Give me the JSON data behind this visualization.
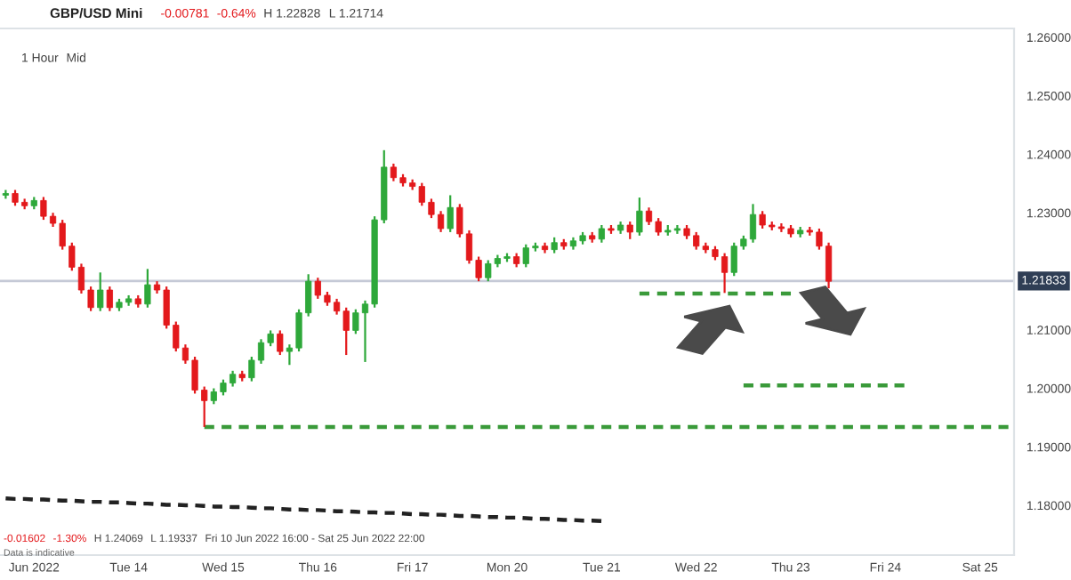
{
  "chart_data": {
    "type": "candlestick",
    "title": "GBP/USD Mini",
    "annotations": [
      "1 Hour",
      "Mid",
      "-0.00781",
      "-0.64%",
      "H 1.22828",
      "L 1.21714",
      "-0.01602",
      "-1.30%",
      "H 1.24069",
      "L 1.19337",
      "Fri 10 Jun 2022 16:00 - Sat 25 Jun 2022 22:00",
      "Data is indicative"
    ],
    "categories": [
      null,
      null,
      null,
      "Jun 2022",
      null,
      null,
      null,
      null,
      null,
      null,
      null,
      null,
      null,
      "Tue 14",
      null,
      null,
      null,
      null,
      null,
      null,
      null,
      null,
      null,
      "Wed 15",
      null,
      null,
      null,
      null,
      null,
      null,
      null,
      null,
      null,
      "Thu 16",
      null,
      null,
      null,
      null,
      null,
      null,
      null,
      null,
      null,
      "Fri 17",
      null,
      null,
      null,
      null,
      null,
      null,
      null,
      null,
      null,
      "Mon 20",
      null,
      null,
      null,
      null,
      null,
      null,
      null,
      null,
      null,
      "Tue 21",
      null,
      null,
      null,
      null,
      null,
      null,
      null,
      null,
      null,
      "Wed 22",
      null,
      null,
      null,
      null,
      null,
      null,
      null,
      null,
      null,
      "Thu 23",
      null,
      null,
      null,
      null,
      null,
      null,
      null,
      null,
      null,
      "Fri 24",
      null,
      null,
      null,
      null,
      null,
      null,
      null,
      null,
      null,
      "Sat 25",
      null,
      null,
      null
    ],
    "ohlc": [
      [
        1.233,
        1.2339,
        1.2324,
        1.2333
      ],
      [
        1.2333,
        1.2339,
        1.2312,
        1.2318
      ],
      [
        1.2318,
        1.2324,
        1.2306,
        1.2312
      ],
      [
        1.2312,
        1.2327,
        1.2306,
        1.2321
      ],
      [
        1.2321,
        1.2327,
        1.2288,
        1.2294
      ],
      [
        1.2294,
        1.23,
        1.2276,
        1.2282
      ],
      [
        1.2282,
        1.2288,
        1.2237,
        1.2243
      ],
      [
        1.2243,
        1.2249,
        1.2201,
        1.2207
      ],
      [
        1.2207,
        1.2213,
        1.2162,
        1.2168
      ],
      [
        1.2168,
        1.2174,
        1.2132,
        1.2138
      ],
      [
        1.2138,
        1.2198,
        1.2132,
        1.2168
      ],
      [
        1.2168,
        1.2174,
        1.2132,
        1.2138
      ],
      [
        1.2138,
        1.2153,
        1.2132,
        1.2147
      ],
      [
        1.2147,
        1.2159,
        1.2141,
        1.2153
      ],
      [
        1.2153,
        1.2159,
        1.2138,
        1.2144
      ],
      [
        1.2144,
        1.2204,
        1.2138,
        1.2177
      ],
      [
        1.2177,
        1.2183,
        1.2162,
        1.2168
      ],
      [
        1.2168,
        1.2174,
        1.2102,
        1.2108
      ],
      [
        1.2108,
        1.2114,
        1.2063,
        1.2069
      ],
      [
        1.2069,
        1.2075,
        1.2042,
        1.2048
      ],
      [
        1.2048,
        1.2054,
        1.1991,
        1.1997
      ],
      [
        1.1997,
        1.2003,
        1.1934,
        1.1979
      ],
      [
        1.1979,
        1.2,
        1.1973,
        1.1994
      ],
      [
        1.1994,
        1.2015,
        1.1988,
        1.2009
      ],
      [
        1.2009,
        1.203,
        1.2003,
        1.2024
      ],
      [
        1.2024,
        1.203,
        1.2012,
        1.2018
      ],
      [
        1.2018,
        1.2054,
        1.2012,
        1.2048
      ],
      [
        1.2048,
        1.2084,
        1.2042,
        1.2078
      ],
      [
        1.2078,
        1.2099,
        1.2072,
        1.2093
      ],
      [
        1.2093,
        1.2099,
        1.2057,
        1.2063
      ],
      [
        1.2063,
        1.2075,
        1.204,
        1.2069
      ],
      [
        1.2069,
        1.2135,
        1.2063,
        1.2129
      ],
      [
        1.2129,
        1.2195,
        1.2123,
        1.2183
      ],
      [
        1.2183,
        1.2189,
        1.2153,
        1.2159
      ],
      [
        1.2159,
        1.2165,
        1.2141,
        1.2147
      ],
      [
        1.2147,
        1.2153,
        1.2126,
        1.2132
      ],
      [
        1.2132,
        1.2138,
        1.2057,
        1.2099
      ],
      [
        1.2099,
        1.2135,
        1.2093,
        1.2129
      ],
      [
        1.2129,
        1.215,
        1.2045,
        1.2144
      ],
      [
        1.2144,
        1.2294,
        1.2138,
        1.2288
      ],
      [
        1.2288,
        1.2407,
        1.2282,
        1.2378
      ],
      [
        1.2378,
        1.2384,
        1.2354,
        1.236
      ],
      [
        1.236,
        1.2366,
        1.2345,
        1.2351
      ],
      [
        1.2351,
        1.2357,
        1.2339,
        1.2345
      ],
      [
        1.2345,
        1.2351,
        1.2312,
        1.2318
      ],
      [
        1.2318,
        1.2324,
        1.2291,
        1.2297
      ],
      [
        1.2297,
        1.2303,
        1.2267,
        1.2273
      ],
      [
        1.2273,
        1.233,
        1.2267,
        1.2309
      ],
      [
        1.2309,
        1.2315,
        1.2258,
        1.2264
      ],
      [
        1.2264,
        1.227,
        1.2213,
        1.2219
      ],
      [
        1.2219,
        1.2225,
        1.2183,
        1.2189
      ],
      [
        1.2189,
        1.2219,
        1.2183,
        1.2213
      ],
      [
        1.2213,
        1.2228,
        1.2207,
        1.2222
      ],
      [
        1.2222,
        1.2231,
        1.2216,
        1.2225
      ],
      [
        1.2225,
        1.2231,
        1.2207,
        1.2213
      ],
      [
        1.2213,
        1.2246,
        1.2207,
        1.224
      ],
      [
        1.224,
        1.2249,
        1.2234,
        1.2243
      ],
      [
        1.2243,
        1.2249,
        1.2231,
        1.2237
      ],
      [
        1.2237,
        1.2258,
        1.2231,
        1.2249
      ],
      [
        1.2249,
        1.2255,
        1.2237,
        1.2243
      ],
      [
        1.2243,
        1.2258,
        1.2237,
        1.2252
      ],
      [
        1.2252,
        1.2267,
        1.2246,
        1.2261
      ],
      [
        1.2261,
        1.2267,
        1.2249,
        1.2255
      ],
      [
        1.2255,
        1.2279,
        1.2249,
        1.2273
      ],
      [
        1.2273,
        1.2279,
        1.2264,
        1.227
      ],
      [
        1.227,
        1.2285,
        1.2264,
        1.2279
      ],
      [
        1.2279,
        1.2285,
        1.2255,
        1.2267
      ],
      [
        1.2267,
        1.2326,
        1.2261,
        1.2303
      ],
      [
        1.2303,
        1.2309,
        1.2279,
        1.2285
      ],
      [
        1.2285,
        1.2291,
        1.2261,
        1.2267
      ],
      [
        1.2267,
        1.2279,
        1.2261,
        1.227
      ],
      [
        1.227,
        1.2279,
        1.2264,
        1.2273
      ],
      [
        1.2273,
        1.2279,
        1.2255,
        1.2261
      ],
      [
        1.2261,
        1.2267,
        1.2237,
        1.2243
      ],
      [
        1.2243,
        1.2249,
        1.2231,
        1.2237
      ],
      [
        1.2237,
        1.2243,
        1.2219,
        1.2225
      ],
      [
        1.2225,
        1.2231,
        1.2163,
        1.2198
      ],
      [
        1.2198,
        1.2249,
        1.2192,
        1.2243
      ],
      [
        1.2243,
        1.2261,
        1.2237,
        1.2255
      ],
      [
        1.2255,
        1.2315,
        1.2249,
        1.2297
      ],
      [
        1.2297,
        1.2303,
        1.2273,
        1.2279
      ],
      [
        1.2279,
        1.2285,
        1.227,
        1.2276
      ],
      [
        1.2276,
        1.2282,
        1.2267,
        1.2273
      ],
      [
        1.2273,
        1.2279,
        1.2258,
        1.2264
      ],
      [
        1.2264,
        1.2276,
        1.2258,
        1.227
      ],
      [
        1.227,
        1.2276,
        1.2261,
        1.2267
      ],
      [
        1.2267,
        1.2273,
        1.2237,
        1.2243
      ],
      [
        1.2243,
        1.2249,
        1.2171,
        1.2183
      ],
      null,
      null,
      null,
      null,
      null,
      null,
      null,
      null,
      null,
      null,
      null,
      null,
      null,
      null,
      null,
      null,
      null,
      null,
      null
    ],
    "colors": [
      "#2ea83a",
      "#e3191c",
      "#e3191c",
      "#2ea83a",
      "#e3191c",
      "#e3191c",
      "#e3191c",
      "#e3191c",
      "#e3191c",
      "#e3191c",
      "#2ea83a",
      "#e3191c",
      "#2ea83a",
      "#2ea83a",
      "#e3191c",
      "#2ea83a",
      "#e3191c",
      "#e3191c",
      "#e3191c",
      "#e3191c",
      "#e3191c",
      "#e3191c",
      "#2ea83a",
      "#2ea83a",
      "#2ea83a",
      "#e3191c",
      "#2ea83a",
      "#2ea83a",
      "#2ea83a",
      "#e3191c",
      "#2ea83a",
      "#2ea83a",
      "#2ea83a",
      "#e3191c",
      "#e3191c",
      "#e3191c",
      "#e3191c",
      "#2ea83a",
      "#2ea83a",
      "#2ea83a",
      "#2ea83a",
      "#e3191c",
      "#e3191c",
      "#e3191c",
      "#e3191c",
      "#e3191c",
      "#e3191c",
      "#2ea83a",
      "#e3191c",
      "#e3191c",
      "#e3191c",
      "#2ea83a",
      "#2ea83a",
      "#2ea83a",
      "#e3191c",
      "#2ea83a",
      "#2ea83a",
      "#e3191c",
      "#2ea83a",
      "#e3191c",
      "#2ea83a",
      "#2ea83a",
      "#e3191c",
      "#2ea83a",
      "#e3191c",
      "#2ea83a",
      "#e3191c",
      "#2ea83a",
      "#e3191c",
      "#e3191c",
      "#2ea83a",
      "#2ea83a",
      "#e3191c",
      "#e3191c",
      "#e3191c",
      "#e3191c",
      "#e3191c",
      "#2ea83a",
      "#2ea83a",
      "#2ea83a",
      "#e3191c",
      "#e3191c",
      "#e3191c",
      "#e3191c",
      "#2ea83a",
      "#e3191c",
      "#e3191c",
      "#e3191c",
      null,
      null,
      null,
      null,
      null,
      null,
      null,
      null,
      null,
      null,
      null,
      null,
      null,
      null,
      null,
      null,
      null,
      null,
      null
    ],
    "series": [
      {
        "type": "line",
        "color": "#3a9a3a",
        "line_style": "dashed",
        "values": [
          null,
          null,
          null,
          null,
          null,
          null,
          null,
          null,
          null,
          null,
          null,
          null,
          null,
          null,
          null,
          null,
          null,
          null,
          null,
          null,
          null,
          1.1934,
          1.1934,
          1.1934,
          1.1934,
          1.1934,
          1.1934,
          1.1934,
          1.1934,
          1.1934,
          1.1934,
          1.1934,
          1.1934,
          1.1934,
          1.1934,
          1.1934,
          1.1934,
          1.1934,
          1.1934,
          1.1934,
          1.1934,
          1.1934,
          1.1934,
          1.1934,
          1.1934,
          1.1934,
          1.1934,
          1.1934,
          1.1934,
          1.1934,
          1.1934,
          1.1934,
          1.1934,
          1.1934,
          1.1934,
          1.1934,
          1.1934,
          1.1934,
          1.1934,
          1.1934,
          1.1934,
          1.1934,
          1.1934,
          1.1934,
          1.1934,
          1.1934,
          1.1934,
          1.1934,
          1.1934,
          1.1934,
          1.1934,
          1.1934,
          1.1934,
          1.1934,
          1.1934,
          1.1934,
          1.1934,
          1.1934,
          1.1934,
          1.1934,
          1.1934,
          1.1934,
          1.1934,
          1.1934,
          1.1934,
          1.1934,
          1.1934,
          1.1934,
          1.1934,
          1.1934,
          1.1934,
          1.1934,
          1.1934,
          1.1934,
          1.1934,
          1.1934,
          1.1934,
          1.1934,
          1.1934,
          1.1934,
          1.1934,
          1.1934,
          1.1934,
          1.1934,
          1.1934,
          1.1934,
          1.1934
        ]
      },
      {
        "type": "line",
        "color": "#3a9a3a",
        "line_style": "dashed",
        "values": [
          null,
          null,
          null,
          null,
          null,
          null,
          null,
          null,
          null,
          null,
          null,
          null,
          null,
          null,
          null,
          null,
          null,
          null,
          null,
          null,
          null,
          null,
          null,
          null,
          null,
          null,
          null,
          null,
          null,
          null,
          null,
          null,
          null,
          null,
          null,
          null,
          null,
          null,
          null,
          null,
          null,
          null,
          null,
          null,
          null,
          null,
          null,
          null,
          null,
          null,
          null,
          null,
          null,
          null,
          null,
          null,
          null,
          null,
          null,
          null,
          null,
          null,
          null,
          null,
          null,
          null,
          null,
          1.2162,
          1.2162,
          1.2162,
          1.2162,
          1.2162,
          1.2162,
          1.2162,
          1.2162,
          1.2162,
          1.2162,
          1.2162,
          1.2162,
          1.2162,
          1.2162,
          1.2162,
          1.2162,
          1.2162,
          null,
          null,
          null,
          null,
          null,
          null,
          null,
          null,
          null,
          null,
          null,
          null,
          null,
          null,
          null,
          null,
          null,
          null,
          null,
          null,
          null,
          null,
          null
        ]
      },
      {
        "type": "line",
        "color": "#3a9a3a",
        "line_style": "dashed",
        "values": [
          null,
          null,
          null,
          null,
          null,
          null,
          null,
          null,
          null,
          null,
          null,
          null,
          null,
          null,
          null,
          null,
          null,
          null,
          null,
          null,
          null,
          null,
          null,
          null,
          null,
          null,
          null,
          null,
          null,
          null,
          null,
          null,
          null,
          null,
          null,
          null,
          null,
          null,
          null,
          null,
          null,
          null,
          null,
          null,
          null,
          null,
          null,
          null,
          null,
          null,
          null,
          null,
          null,
          null,
          null,
          null,
          null,
          null,
          null,
          null,
          null,
          null,
          null,
          null,
          null,
          null,
          null,
          null,
          null,
          null,
          null,
          null,
          null,
          null,
          null,
          null,
          null,
          null,
          1.2005,
          1.2005,
          1.2005,
          1.2005,
          1.2005,
          1.2005,
          1.2005,
          1.2005,
          1.2005,
          1.2005,
          1.2005,
          1.2005,
          1.2005,
          1.2005,
          1.2005,
          1.2005,
          1.2005,
          1.2005,
          null,
          null,
          null,
          null,
          null,
          null,
          null,
          null,
          null,
          null,
          null
        ]
      },
      {
        "type": "line",
        "color": "#222222",
        "line_style": "dashed",
        "values": [
          1.1812,
          1.1811,
          1.1811,
          1.181,
          1.181,
          1.1809,
          1.1808,
          1.1808,
          1.1807,
          1.1806,
          1.1806,
          1.1805,
          1.1805,
          1.1804,
          1.1803,
          1.1803,
          1.1802,
          1.1801,
          1.1801,
          1.18,
          1.18,
          1.1799,
          1.1798,
          1.1798,
          1.1797,
          1.1797,
          1.1796,
          1.1795,
          1.1795,
          1.1794,
          1.1793,
          1.1793,
          1.1792,
          1.1792,
          1.1791,
          1.179,
          1.179,
          1.1789,
          1.1788,
          1.1788,
          1.1787,
          1.1787,
          1.1786,
          1.1785,
          1.1785,
          1.1784,
          1.1784,
          1.1783,
          1.1782,
          1.1782,
          1.1781,
          1.178,
          1.178,
          1.1779,
          1.1779,
          1.1778,
          1.1777,
          1.1777,
          1.1776,
          1.1775,
          1.1775,
          1.1774,
          1.1774,
          1.1773,
          null,
          null,
          null,
          null,
          null,
          null,
          null,
          null,
          null,
          null,
          null,
          null,
          null,
          null,
          null,
          null,
          null,
          null,
          null,
          null,
          null,
          null,
          null,
          null,
          null,
          null,
          null,
          null,
          null,
          null,
          null,
          null,
          null,
          null,
          null,
          null,
          null,
          null,
          null,
          null,
          null,
          null,
          null
        ]
      }
    ],
    "ref_lines": [
      {
        "axis": "y",
        "value": 1.21833,
        "label": "1.21833",
        "color": "#c5c9d6"
      }
    ],
    "ylim": [
      1.1715,
      1.2615
    ],
    "yticks": [
      {
        "value": 1.18,
        "label": "1.18000"
      },
      {
        "value": 1.19,
        "label": "1.19000"
      },
      {
        "value": 1.2,
        "label": "1.20000"
      },
      {
        "value": 1.21,
        "label": "1.21000"
      },
      {
        "value": 1.23,
        "label": "1.23000"
      },
      {
        "value": 1.24,
        "label": "1.24000"
      },
      {
        "value": 1.25,
        "label": "1.25000"
      },
      {
        "value": 1.26,
        "label": "1.26000"
      }
    ],
    "grid": false,
    "legend": false
  }
}
